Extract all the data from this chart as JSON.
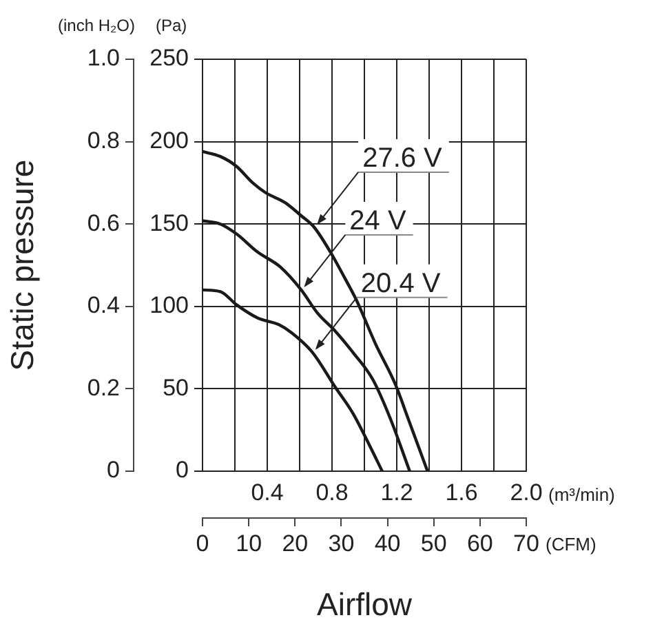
{
  "chart_data": {
    "type": "line",
    "xlabel": "Airflow",
    "ylabel": "Static pressure",
    "xlim": [
      0,
      2
    ],
    "xticks": [
      {
        "value": 0,
        "label": null
      },
      {
        "value": 0.2,
        "label": null
      },
      0.4,
      {
        "value": 0.6,
        "label": null
      },
      0.8,
      {
        "value": 1.0,
        "label": null
      },
      1.2,
      {
        "value": 1.4,
        "label": null
      },
      1.6,
      {
        "value": 1.8,
        "label": null
      },
      {
        "value": 2.0,
        "label": "2.0"
      }
    ],
    "ylim": [
      0,
      1
    ],
    "yticks": [
      0,
      0.2,
      0.4,
      0.6,
      0.8,
      {
        "value": 1,
        "label": "1.0"
      }
    ],
    "y2lim": [
      0,
      250
    ],
    "y2ticks": [
      0,
      50,
      100,
      150,
      200,
      250
    ],
    "x2lim": [
      0,
      70
    ],
    "x2ticks": [
      0,
      10,
      20,
      30,
      40,
      50,
      60,
      70
    ],
    "annotations": [
      "(inch H₂O)",
      "(Pa)",
      "(m³/min)",
      "(CFM)"
    ],
    "grid": true,
    "legend": "right",
    "marker": "none",
    "line_style": "solid",
    "series": [
      {
        "name": "27.6 V",
        "color": "#1a1a1a",
        "axis": "y2",
        "x": [
          0,
          0.11,
          0.21,
          0.31,
          0.39,
          0.51,
          0.61,
          0.69,
          0.79,
          0.88,
          0.95,
          1.07,
          1.19,
          1.27,
          1.39
        ],
        "values": [
          194,
          191,
          185,
          175,
          169,
          163,
          155,
          148,
          133,
          117,
          104,
          77,
          53,
          32,
          0
        ]
      },
      {
        "name": "24 V",
        "color": "#1a1a1a",
        "axis": "y2",
        "x": [
          0,
          0.11,
          0.21,
          0.34,
          0.48,
          0.61,
          0.71,
          0.82,
          0.93,
          1.05,
          1.16,
          1.28
        ],
        "values": [
          152,
          150,
          144,
          133,
          124,
          110,
          96,
          85,
          72,
          56,
          32,
          0
        ]
      },
      {
        "name": "20.4 V",
        "color": "#1a1a1a",
        "axis": "y2",
        "x": [
          0,
          0.11,
          0.21,
          0.34,
          0.47,
          0.55,
          0.68,
          0.82,
          0.93,
          1.03,
          1.11
        ],
        "values": [
          110,
          109,
          101,
          93,
          89,
          84,
          72,
          51,
          35,
          16,
          0
        ]
      }
    ]
  }
}
